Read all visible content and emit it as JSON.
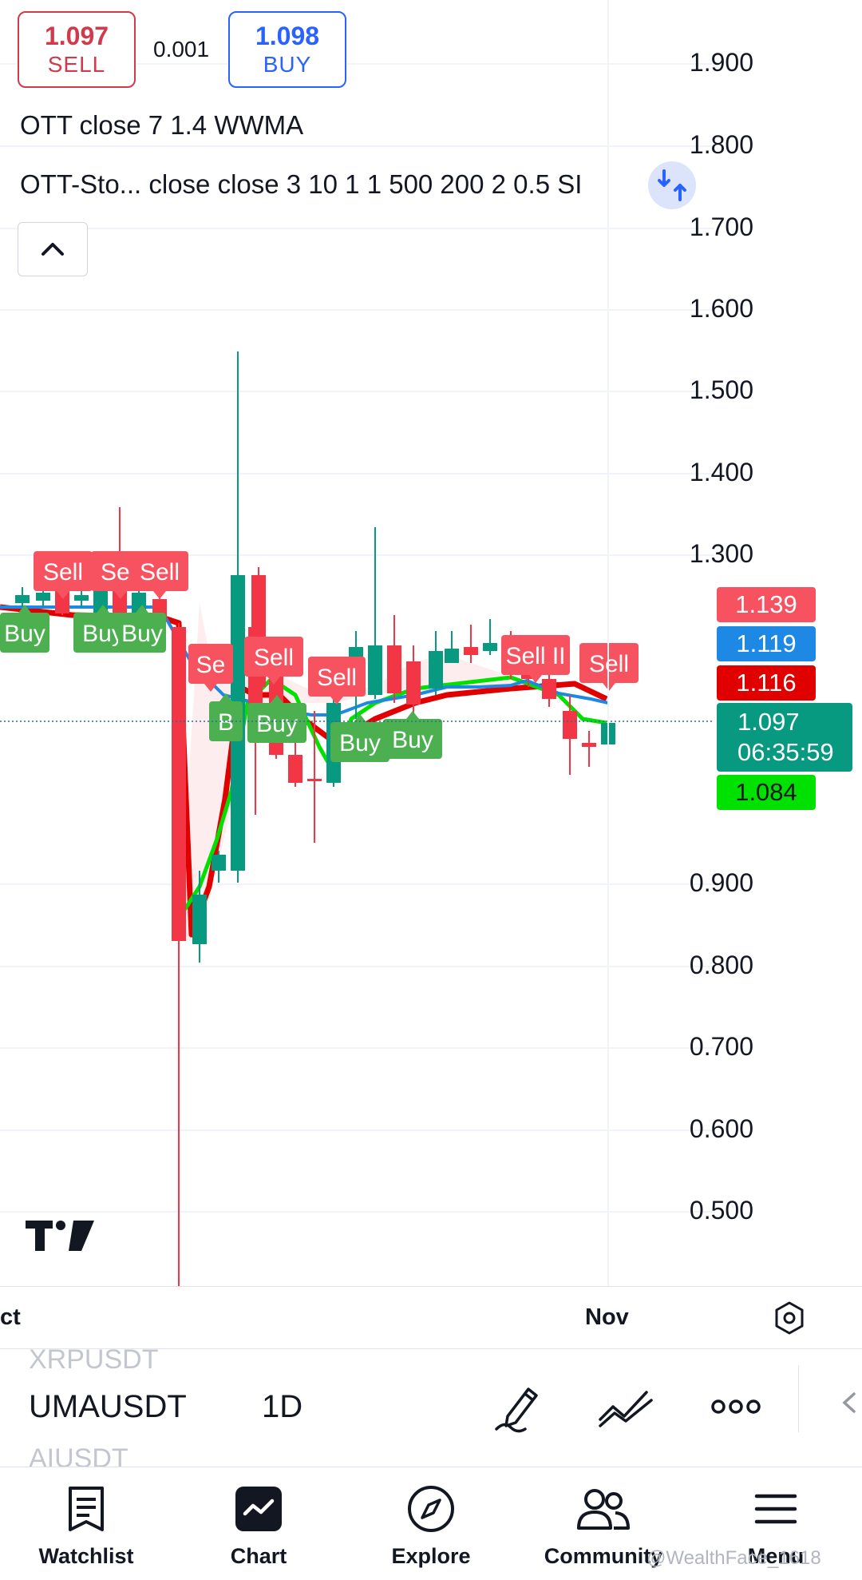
{
  "trade": {
    "sell_price": "1.097",
    "sell_label": "SELL",
    "spread": "0.001",
    "buy_price": "1.098",
    "buy_label": "BUY"
  },
  "indicators": {
    "line1": "OTT close 7 1.4 WWMA",
    "line2": "OTT-Sto... close close 3 10 1 1 500 200 2 0.5 SI"
  },
  "price_axis": [
    "1.900",
    "1.800",
    "1.700",
    "1.600",
    "1.500",
    "1.400",
    "1.300",
    "0.900",
    "0.800",
    "0.700",
    "0.600",
    "0.500"
  ],
  "price_tags": {
    "t1": "1.139",
    "t2": "1.119",
    "t3": "1.116",
    "current": "1.097",
    "countdown": "06:35:59",
    "t5": "1.084"
  },
  "signals": {
    "sell": [
      "Sell",
      "Sell",
      "Sell",
      "Se",
      "Sell",
      "Sell",
      "Sell II",
      "Sell"
    ],
    "buy": [
      "Buy",
      "Buy",
      "Buy",
      "B",
      "Buy",
      "Buy",
      "Buy"
    ]
  },
  "time_axis": {
    "left": "ct",
    "right": "Nov"
  },
  "symbols": {
    "prev": "XRPUSDT",
    "current": "UMAUSDT",
    "next": "AIUSDT",
    "interval": "1D"
  },
  "nav": [
    "Watchlist",
    "Chart",
    "Explore",
    "Community",
    "Menu"
  ],
  "watermark": "@WealthFace_1618",
  "colors": {
    "up": "#089981",
    "down": "#f23645",
    "sell_btn": "#cf3a4c",
    "buy_btn": "#2962ff",
    "ott_green": "#00e100",
    "ott_red": "#e00000",
    "wwma_blue": "#1e88e5"
  }
}
